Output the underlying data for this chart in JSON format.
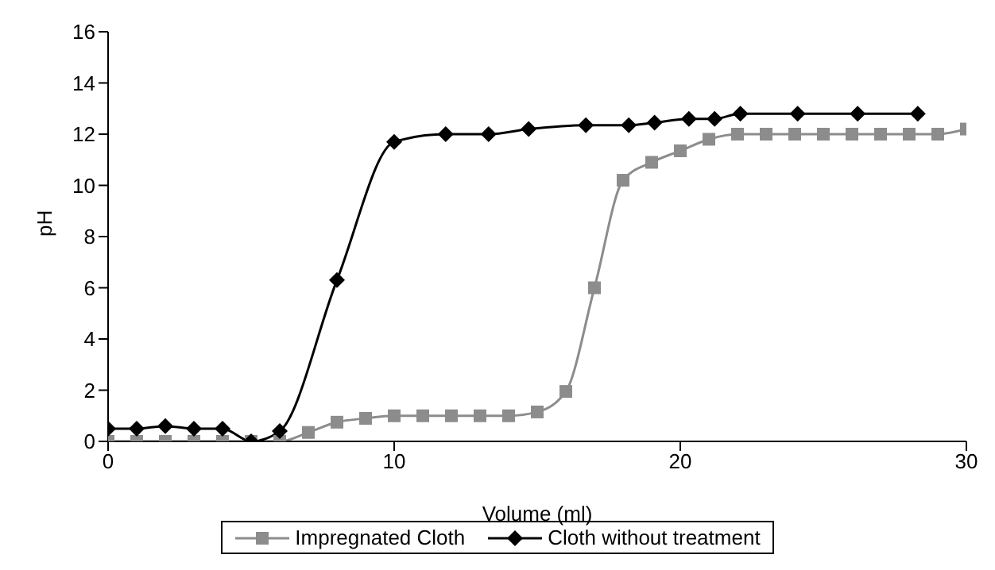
{
  "chart_data": {
    "type": "line",
    "xlabel": "Volume (ml)",
    "ylabel": "pH",
    "xlim": [
      0,
      30
    ],
    "xticks": [
      0,
      10,
      20,
      30
    ],
    "ylim": [
      0,
      16
    ],
    "yticks": [
      0,
      2,
      4,
      6,
      8,
      10,
      12,
      14,
      16
    ],
    "legend": "bottom",
    "line_style": "solid",
    "series": [
      {
        "name": "Impregnated Cloth",
        "color": "#8c8c8c",
        "marker": "square",
        "x": [
          0,
          1,
          2,
          3,
          4,
          5,
          6,
          7,
          8,
          9,
          10,
          11,
          12,
          13,
          14,
          15,
          16,
          17,
          18,
          19,
          20,
          21,
          22,
          23,
          24,
          25,
          26,
          27,
          28,
          29,
          30
        ],
        "values": [
          0,
          0,
          0,
          0,
          0,
          0,
          0,
          0.35,
          0.75,
          0.9,
          1,
          1,
          1,
          1,
          1,
          1.15,
          1.95,
          6,
          10.2,
          10.9,
          11.35,
          11.8,
          12,
          12,
          12,
          12,
          12,
          12,
          12,
          12,
          12.2
        ]
      },
      {
        "name": "Cloth without treatment",
        "color": "#000000",
        "marker": "diamond",
        "x": [
          0,
          1,
          2,
          3,
          4,
          5,
          6,
          8,
          10,
          11.8,
          13.3,
          14.7,
          16.7,
          18.2,
          19.1,
          20.3,
          21.2,
          22.1,
          24.1,
          26.2,
          28.3
        ],
        "values": [
          0.5,
          0.5,
          0.6,
          0.5,
          0.5,
          0,
          0.4,
          6.3,
          11.7,
          12,
          12,
          12.2,
          12.35,
          12.35,
          12.45,
          12.6,
          12.6,
          12.8,
          12.8,
          12.8,
          12.8
        ]
      }
    ]
  }
}
